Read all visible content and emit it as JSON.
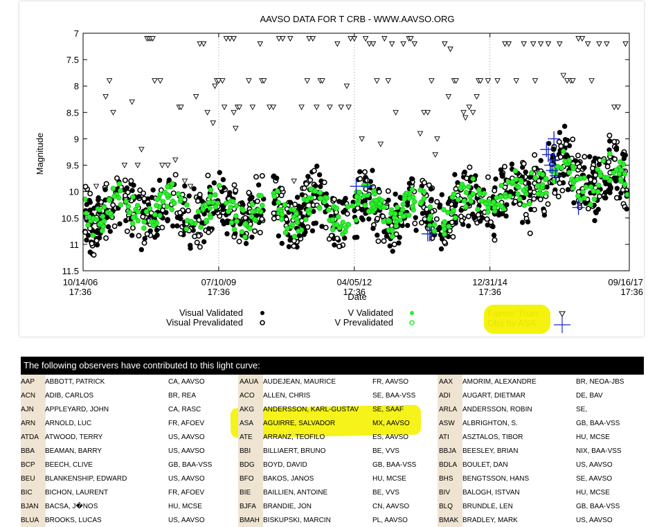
{
  "chart_data": {
    "type": "scatter",
    "title": "AAVSO DATA FOR T CRB - WWW.AAVSO.ORG",
    "xlabel": "Date",
    "ylabel": "Magnitude",
    "y_inverted": true,
    "ylim": [
      7,
      11.5
    ],
    "yticks": [
      "7",
      "7.5",
      "8",
      "8.5",
      "9",
      "9.5",
      "10",
      "10.5",
      "11",
      "11.5"
    ],
    "xticks": [
      {
        "date": "10/14/06",
        "time": "17:36"
      },
      {
        "date": "07/10/09",
        "time": "17:36"
      },
      {
        "date": "04/05/12",
        "time": "17:36"
      },
      {
        "date": "12/31/14",
        "time": "17:36"
      },
      {
        "date": "09/16/17",
        "time": "17:36"
      }
    ],
    "grid": true,
    "legend": [
      {
        "label": "Visual Validated",
        "marker": "black filled circle"
      },
      {
        "label": "Visual Prevalidated",
        "marker": "black hatched circle"
      },
      {
        "label": "V Validated",
        "marker": "green filled circle"
      },
      {
        "label": "V Prevalidated",
        "marker": "green hatched circle"
      },
      {
        "label": "Fainter Than",
        "marker": "inverted triangle"
      },
      {
        "label": "Obs by ASA",
        "marker": "blue plus"
      }
    ],
    "colors": {
      "visual": "#000000",
      "v_band": "#00e000",
      "asa": "#1a28c8",
      "highlight": "#f4f200"
    },
    "series": [
      {
        "name": "Fainter Than",
        "points": [
          [
            0.7,
            9.9
          ],
          [
            1.2,
            8.2
          ],
          [
            1.4,
            7.9
          ],
          [
            1.6,
            8.5
          ],
          [
            2.2,
            9.5
          ],
          [
            2.6,
            8.3
          ],
          [
            2.9,
            9.5
          ],
          [
            3.1,
            9.2
          ],
          [
            3.4,
            7.1
          ],
          [
            3.5,
            7.1
          ],
          [
            3.6,
            7.1
          ],
          [
            3.7,
            7.1
          ],
          [
            3.8,
            7.9
          ],
          [
            4.1,
            7.9
          ],
          [
            4.2,
            9.5
          ],
          [
            4.5,
            9.5
          ],
          [
            4.9,
            9.4
          ],
          [
            5.1,
            8.4
          ],
          [
            5.2,
            8.4
          ],
          [
            5.4,
            9.8
          ],
          [
            5.7,
            9.9
          ],
          [
            6.0,
            8.2
          ],
          [
            6.2,
            7.2
          ],
          [
            6.4,
            7.2
          ],
          [
            6.6,
            8.5
          ],
          [
            6.9,
            8.7
          ],
          [
            7.0,
            8.0
          ],
          [
            7.1,
            7.9
          ],
          [
            7.2,
            7.9
          ],
          [
            7.4,
            7.9
          ],
          [
            7.5,
            8.4
          ],
          [
            7.6,
            7.1
          ],
          [
            7.8,
            7.1
          ],
          [
            8.0,
            7.1
          ],
          [
            8.2,
            8.4
          ],
          [
            8.0,
            8.5
          ],
          [
            8.1,
            8.8
          ],
          [
            8.3,
            8.4
          ],
          [
            8.8,
            7.9
          ],
          [
            9.0,
            8.4
          ],
          [
            9.4,
            7.2
          ],
          [
            9.5,
            7.9
          ],
          [
            9.6,
            7.9
          ],
          [
            9.9,
            8.4
          ],
          [
            10.1,
            8.4
          ],
          [
            10.4,
            7.1
          ],
          [
            10.6,
            7.1
          ],
          [
            11.0,
            7.1
          ],
          [
            11.2,
            9.8
          ],
          [
            11.6,
            8.4
          ],
          [
            11.9,
            7.9
          ],
          [
            12.0,
            7.1
          ],
          [
            12.2,
            7.1
          ],
          [
            12.4,
            8.4
          ],
          [
            12.6,
            7.9
          ],
          [
            12.7,
            7.9
          ],
          [
            13.1,
            8.4
          ],
          [
            13.5,
            7.2
          ],
          [
            13.7,
            8.4
          ],
          [
            14.0,
            8.0
          ],
          [
            14.1,
            8.4
          ],
          [
            14.2,
            7.1
          ],
          [
            14.4,
            7.1
          ],
          [
            14.8,
            9.0
          ],
          [
            15.0,
            7.1
          ],
          [
            15.2,
            7.2
          ],
          [
            15.4,
            7.2
          ],
          [
            15.6,
            7.9
          ],
          [
            15.8,
            9.1
          ],
          [
            16.0,
            7.1
          ],
          [
            16.2,
            7.9
          ],
          [
            16.4,
            7.2
          ],
          [
            16.6,
            8.5
          ],
          [
            17.0,
            7.2
          ],
          [
            17.3,
            7.1
          ],
          [
            17.4,
            7.1
          ],
          [
            17.6,
            7.2
          ],
          [
            17.9,
            8.9
          ],
          [
            18.1,
            8.5
          ],
          [
            18.3,
            8.5
          ],
          [
            18.5,
            7.9
          ],
          [
            18.7,
            9.3
          ],
          [
            18.8,
            9.0
          ],
          [
            19.2,
            7.2
          ],
          [
            19.4,
            8.2
          ],
          [
            19.5,
            7.3
          ],
          [
            19.7,
            7.9
          ],
          [
            19.8,
            7.9
          ],
          [
            20.2,
            8.5
          ],
          [
            20.3,
            8.6
          ],
          [
            20.5,
            8.4
          ],
          [
            20.7,
            8.5
          ],
          [
            20.9,
            8.2
          ],
          [
            21.0,
            7.9
          ],
          [
            21.1,
            7.9
          ],
          [
            21.5,
            7.9
          ],
          [
            22.0,
            7.9
          ],
          [
            22.4,
            7.2
          ],
          [
            22.6,
            7.2
          ],
          [
            23.0,
            7.9
          ],
          [
            23.4,
            7.2
          ],
          [
            23.9,
            7.2
          ],
          [
            24.0,
            7.9
          ],
          [
            24.3,
            7.2
          ],
          [
            24.7,
            7.2
          ],
          [
            25.3,
            7.2
          ],
          [
            25.5,
            7.8
          ],
          [
            25.7,
            7.9
          ],
          [
            25.9,
            7.9
          ],
          [
            26.0,
            7.9
          ],
          [
            26.3,
            7.1
          ],
          [
            26.5,
            7.1
          ],
          [
            26.8,
            7.2
          ],
          [
            27.0,
            7.9
          ],
          [
            27.4,
            7.2
          ],
          [
            27.8,
            7.2
          ],
          [
            28.2,
            8.4
          ],
          [
            28.4,
            8.4
          ],
          [
            28.8,
            7.2
          ]
        ]
      },
      {
        "name": "Obs by ASA",
        "points": [
          [
            14.5,
            9.9
          ],
          [
            15.1,
            9.9
          ],
          [
            18.3,
            10.8
          ],
          [
            18.4,
            10.8
          ],
          [
            18.5,
            10.8
          ],
          [
            24.6,
            9.2
          ],
          [
            24.7,
            9.3
          ],
          [
            24.8,
            9.5
          ],
          [
            24.9,
            9.6
          ],
          [
            25.0,
            9.4
          ],
          [
            25.1,
            9.7
          ],
          [
            25.0,
            9.0
          ],
          [
            26.3,
            10.3
          ]
        ]
      }
    ]
  },
  "observers": {
    "header": "The following observers have contributed to this light curve:",
    "columns": [
      [
        {
          "code": "AAP",
          "name": "ABBOTT, PATRICK",
          "affil": "CA, AAVSO"
        },
        {
          "code": "ACN",
          "name": "ADIB, CARLOS",
          "affil": "BR, REA"
        },
        {
          "code": "AJN",
          "name": "APPLEYARD, JOHN",
          "affil": "CA, RASC"
        },
        {
          "code": "ARN",
          "name": "ARNOLD, LUC",
          "affil": "FR, AFOEV"
        },
        {
          "code": "ATDA",
          "name": "ATWOOD, TERRY",
          "affil": "US, AAVSO"
        },
        {
          "code": "BBA",
          "name": "BEAMAN, BARRY",
          "affil": "US, AAVSO"
        },
        {
          "code": "BCP",
          "name": "BEECH, CLIVE",
          "affil": "GB, BAA-VSS"
        },
        {
          "code": "BEU",
          "name": "BLANKENSHIP, EDWARD",
          "affil": "US, AAVSO"
        },
        {
          "code": "BIC",
          "name": "BICHON, LAURENT",
          "affil": "FR, AFOEV"
        },
        {
          "code": "BJAN",
          "name": "BACSA, J�NOS",
          "affil": "HU, MCSE"
        },
        {
          "code": "BLUA",
          "name": "BROOKS, LUCAS",
          "affil": "US, AAVSO"
        }
      ],
      [
        {
          "code": "AAUA",
          "name": "AUDEJEAN, MAURICE",
          "affil": "FR, AAVSO"
        },
        {
          "code": "ACO",
          "name": "ALLEN, CHRIS",
          "affil": "SE, BAA-VSS"
        },
        {
          "code": "AKG",
          "name": "ANDERSSON, KARL-GUSTAV",
          "affil": "SE, SAAF"
        },
        {
          "code": "ASA",
          "name": "AGUIRRE, SALVADOR",
          "affil": "MX, AAVSO"
        },
        {
          "code": "ATE",
          "name": "ARRANZ, TEOFILO",
          "affil": "ES, AAVSO"
        },
        {
          "code": "BBI",
          "name": "BILLIAERT, BRUNO",
          "affil": "BE, VVS"
        },
        {
          "code": "BDG",
          "name": "BOYD, DAVID",
          "affil": "GB, BAA-VSS"
        },
        {
          "code": "BFO",
          "name": "BAKOS, JANOS",
          "affil": "HU, MCSE"
        },
        {
          "code": "BIE",
          "name": "BAILLIEN, ANTOINE",
          "affil": "BE, VVS"
        },
        {
          "code": "BJFA",
          "name": "BRANDIE, JON",
          "affil": "CN, AAVSO"
        },
        {
          "code": "BMAH",
          "name": "BISKUPSKI, MARCIN",
          "affil": "PL, AAVSO"
        }
      ],
      [
        {
          "code": "AAX",
          "name": "AMORIM, ALEXANDRE",
          "affil": "BR, NEOA-JBS"
        },
        {
          "code": "ADI",
          "name": "AUGART, DIETMAR",
          "affil": "DE, BAV"
        },
        {
          "code": "ARLA",
          "name": "ANDERSSON, ROBIN",
          "affil": "SE,"
        },
        {
          "code": "ASW",
          "name": "ALBRIGHTON, S.",
          "affil": "GB, BAA-VSS"
        },
        {
          "code": "ATI",
          "name": "ASZTALOS, TIBOR",
          "affil": "HU, MCSE"
        },
        {
          "code": "BBJA",
          "name": "BEESLEY, BRIAN",
          "affil": "NIX, BAA-VSS"
        },
        {
          "code": "BDLA",
          "name": "BOULET, DAN",
          "affil": "US, AAVSO"
        },
        {
          "code": "BHS",
          "name": "BENGTSSON, HANS",
          "affil": "SE, AAVSO"
        },
        {
          "code": "BIV",
          "name": "BALOGH, ISTVAN",
          "affil": "HU, MCSE"
        },
        {
          "code": "BLQ",
          "name": "BRUNDLE, LEN",
          "affil": "GB, BAA-VSS"
        },
        {
          "code": "BMAK",
          "name": "BRADLEY, MARK",
          "affil": "US, AAVSO"
        }
      ]
    ]
  }
}
